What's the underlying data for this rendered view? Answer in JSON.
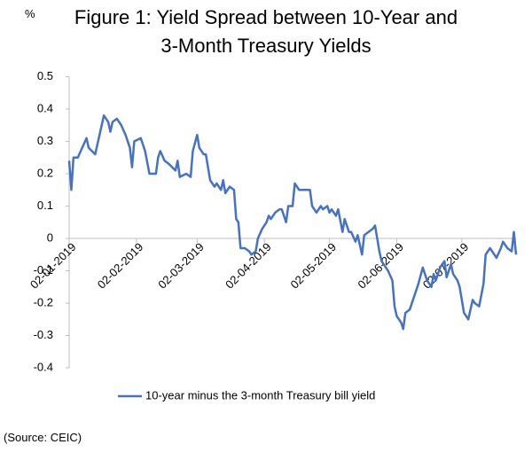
{
  "chart_data": {
    "type": "line",
    "title": "Figure 1: Yield Spread between 10-Year and 3-Month Treasury Yields",
    "y_label": "%",
    "source": "(Source: CEIC)",
    "x": [
      "2019-01-02",
      "2019-01-03",
      "2019-01-04",
      "2019-01-06",
      "2019-01-08",
      "2019-01-10",
      "2019-01-11",
      "2019-01-14",
      "2019-01-16",
      "2019-01-18",
      "2019-01-20",
      "2019-01-21",
      "2019-01-22",
      "2019-01-24",
      "2019-01-26",
      "2019-01-28",
      "2019-01-30",
      "2019-01-31",
      "2019-02-01",
      "2019-02-04",
      "2019-02-06",
      "2019-02-08",
      "2019-02-11",
      "2019-02-12",
      "2019-02-13",
      "2019-02-15",
      "2019-02-17",
      "2019-02-20",
      "2019-02-21",
      "2019-02-22",
      "2019-02-25",
      "2019-02-27",
      "2019-02-28",
      "2019-03-02",
      "2019-03-03",
      "2019-03-05",
      "2019-03-06",
      "2019-03-08",
      "2019-03-10",
      "2019-03-11",
      "2019-03-13",
      "2019-03-14",
      "2019-03-15",
      "2019-03-17",
      "2019-03-19",
      "2019-03-20",
      "2019-03-21",
      "2019-03-22",
      "2019-03-24",
      "2019-03-26",
      "2019-03-27",
      "2019-03-29",
      "2019-03-30",
      "2019-04-01",
      "2019-04-03",
      "2019-04-04",
      "2019-04-05",
      "2019-04-07",
      "2019-04-09",
      "2019-04-10",
      "2019-04-12",
      "2019-04-13",
      "2019-04-15",
      "2019-04-16",
      "2019-04-18",
      "2019-04-20",
      "2019-04-23",
      "2019-04-24",
      "2019-04-26",
      "2019-04-28",
      "2019-04-29",
      "2019-05-01",
      "2019-05-02",
      "2019-05-03",
      "2019-05-05",
      "2019-05-06",
      "2019-05-08",
      "2019-05-09",
      "2019-05-11",
      "2019-05-12",
      "2019-05-14",
      "2019-05-15",
      "2019-05-17",
      "2019-05-18",
      "2019-05-20",
      "2019-05-22",
      "2019-05-23",
      "2019-05-25",
      "2019-05-26",
      "2019-05-27",
      "2019-05-29",
      "2019-05-31",
      "2019-06-01",
      "2019-06-02",
      "2019-06-04",
      "2019-06-05",
      "2019-06-06",
      "2019-06-08",
      "2019-06-10",
      "2019-06-12",
      "2019-06-14",
      "2019-06-16",
      "2019-06-18",
      "2019-06-19",
      "2019-06-20",
      "2019-06-22",
      "2019-06-24",
      "2019-06-25",
      "2019-06-27",
      "2019-06-28",
      "2019-06-30",
      "2019-07-01",
      "2019-07-03",
      "2019-07-05",
      "2019-07-07",
      "2019-07-08",
      "2019-07-10",
      "2019-07-12",
      "2019-07-13",
      "2019-07-15",
      "2019-07-17",
      "2019-07-18",
      "2019-07-20",
      "2019-07-21",
      "2019-07-23",
      "2019-07-25",
      "2019-07-26",
      "2019-07-27"
    ],
    "series": [
      {
        "name": "10-year minus the 3-month Treasury bill yield",
        "color": "#4472c4",
        "values": [
          0.24,
          0.15,
          0.25,
          0.25,
          0.28,
          0.31,
          0.28,
          0.26,
          0.32,
          0.38,
          0.36,
          0.33,
          0.36,
          0.37,
          0.35,
          0.32,
          0.28,
          0.22,
          0.3,
          0.31,
          0.27,
          0.2,
          0.2,
          0.25,
          0.27,
          0.24,
          0.23,
          0.21,
          0.24,
          0.19,
          0.2,
          0.19,
          0.27,
          0.32,
          0.28,
          0.26,
          0.26,
          0.18,
          0.16,
          0.17,
          0.15,
          0.18,
          0.14,
          0.16,
          0.15,
          0.06,
          0.05,
          -0.03,
          -0.03,
          -0.04,
          -0.05,
          -0.04,
          0.0,
          0.03,
          0.05,
          0.07,
          0.06,
          0.08,
          0.09,
          0.09,
          0.05,
          0.1,
          0.1,
          0.17,
          0.15,
          0.15,
          0.15,
          0.1,
          0.08,
          0.1,
          0.09,
          0.1,
          0.08,
          0.09,
          0.07,
          0.09,
          0.02,
          0.06,
          0.02,
          0.02,
          -0.01,
          0.01,
          -0.05,
          0.01,
          0.02,
          0.03,
          0.04,
          -0.04,
          -0.07,
          -0.08,
          -0.1,
          -0.13,
          -0.21,
          -0.24,
          -0.26,
          -0.28,
          -0.23,
          -0.22,
          -0.18,
          -0.14,
          -0.09,
          -0.13,
          -0.15,
          -0.11,
          -0.13,
          -0.09,
          -0.07,
          -0.12,
          -0.08,
          -0.11,
          -0.13,
          -0.15,
          -0.23,
          -0.25,
          -0.19,
          -0.2,
          -0.21,
          -0.14,
          -0.05,
          -0.03,
          -0.05,
          -0.06,
          -0.03,
          -0.01,
          -0.03,
          -0.04,
          0.02,
          -0.05
        ]
      }
    ],
    "xlim": [
      "2019-01-02",
      "2019-07-27"
    ],
    "xticks": [
      {
        "value": "2019-01-02",
        "label": "02-01-2019"
      },
      {
        "value": "2019-02-02",
        "label": "02-02-2019"
      },
      {
        "value": "2019-03-02",
        "label": "02-03-2019"
      },
      {
        "value": "2019-04-02",
        "label": "02-04-2019"
      },
      {
        "value": "2019-05-02",
        "label": "02-05-2019"
      },
      {
        "value": "2019-06-02",
        "label": "02-06-2019"
      },
      {
        "value": "2019-07-02",
        "label": "02-07-2019"
      }
    ],
    "ylim": [
      -0.4,
      0.5
    ],
    "yticks": [
      0.5,
      0.4,
      0.3,
      0.2,
      0.1,
      0,
      -0.1,
      -0.2,
      -0.3,
      -0.4
    ],
    "grid": false,
    "legend": "bottom"
  }
}
